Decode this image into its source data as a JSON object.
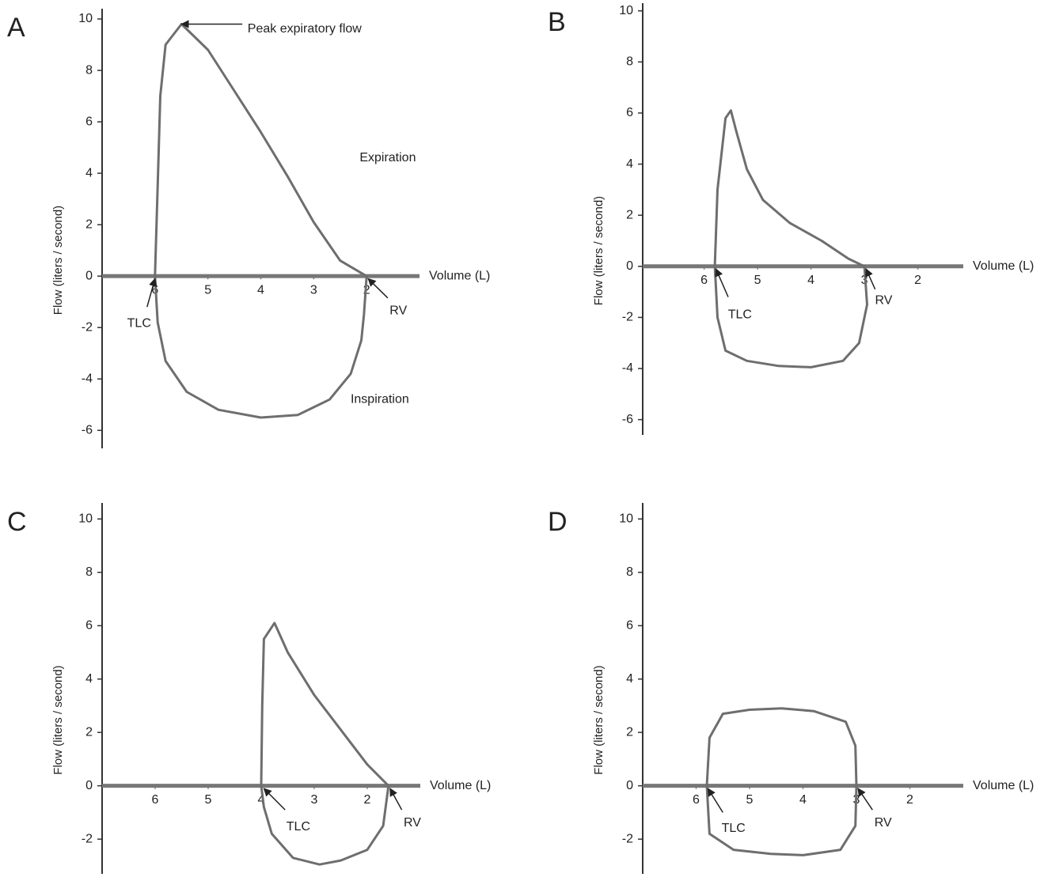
{
  "chart_data": [
    {
      "type": "line",
      "panel": "A",
      "y_label": "Flow (liters / second)",
      "x_label": "Volume (L)",
      "color": "#6e6e6e",
      "xlim": [
        7,
        1
      ],
      "ylim": [
        -6.7,
        10.4
      ],
      "xticks": [
        6,
        5,
        4,
        3,
        2
      ],
      "yticks": [
        10,
        8,
        6,
        4,
        2,
        0,
        -2,
        -4,
        -6
      ],
      "x": [
        6,
        5.95,
        5.9,
        5.8,
        5.5,
        5,
        4.5,
        4,
        3.5,
        3,
        2.5,
        2,
        2.05,
        2.1,
        2.3,
        2.7,
        3.3,
        4,
        4.8,
        5.4,
        5.8,
        5.95,
        6
      ],
      "values": [
        0,
        3.5,
        7,
        9,
        9.8,
        8.8,
        7.2,
        5.6,
        3.9,
        2.1,
        0.6,
        0,
        -1.5,
        -2.5,
        -3.8,
        -4.8,
        -5.4,
        -5.5,
        -5.2,
        -4.5,
        -3.3,
        -1.8,
        0
      ],
      "annotations": [
        "Peak expiratory flow",
        "Expiration",
        "Inspiration",
        "TLC",
        "RV"
      ]
    },
    {
      "type": "line",
      "panel": "B",
      "y_label": "Flow (liters / second)",
      "x_label": "Volume (L)",
      "color": "#6e6e6e",
      "xlim": [
        7.15,
        1.15
      ],
      "ylim": [
        -6.6,
        10.3
      ],
      "xticks": [
        6,
        5,
        4,
        3,
        2
      ],
      "yticks": [
        10,
        8,
        6,
        4,
        2,
        0,
        -2,
        -4,
        -6
      ],
      "x": [
        5.8,
        5.75,
        5.6,
        5.5,
        5.4,
        5.2,
        4.9,
        4.4,
        3.8,
        3.3,
        3,
        2.95,
        3.1,
        3.4,
        4,
        4.6,
        5.2,
        5.6,
        5.75,
        5.8
      ],
      "values": [
        0,
        3,
        5.8,
        6.1,
        5.3,
        3.8,
        2.6,
        1.7,
        1,
        0.3,
        0,
        -1.5,
        -3,
        -3.7,
        -3.95,
        -3.9,
        -3.7,
        -3.3,
        -2,
        0
      ],
      "annotations": [
        "TLC",
        "RV"
      ]
    },
    {
      "type": "line",
      "panel": "C",
      "y_label": "Flow (liters / second)",
      "x_label": "Volume (L)",
      "color": "#6e6e6e",
      "xlim": [
        7,
        1
      ],
      "ylim": [
        -3.3,
        10.6
      ],
      "xticks": [
        6,
        5,
        4,
        3,
        2
      ],
      "yticks": [
        10,
        8,
        6,
        4,
        2,
        0,
        -2
      ],
      "x": [
        4,
        3.98,
        3.95,
        3.75,
        3.5,
        3,
        2.5,
        2,
        1.6,
        1.7,
        2,
        2.5,
        2.9,
        3.4,
        3.8,
        3.95,
        4
      ],
      "values": [
        0,
        3,
        5.5,
        6.1,
        5,
        3.4,
        2.1,
        0.8,
        0,
        -1.5,
        -2.4,
        -2.8,
        -2.95,
        -2.7,
        -1.8,
        -0.8,
        0
      ],
      "annotations": [
        "TLC",
        "RV"
      ]
    },
    {
      "type": "line",
      "panel": "D",
      "y_label": "Flow (liters / second)",
      "x_label": "Volume (L)",
      "color": "#6e6e6e",
      "xlim": [
        7,
        1
      ],
      "ylim": [
        -3.3,
        10.6
      ],
      "xticks": [
        6,
        5,
        4,
        3,
        2
      ],
      "yticks": [
        10,
        8,
        6,
        4,
        2,
        0,
        -2
      ],
      "x": [
        5.8,
        5.75,
        5.5,
        5,
        4.4,
        3.8,
        3.2,
        3.02,
        3,
        3.02,
        3.3,
        4,
        4.6,
        5.3,
        5.75,
        5.8
      ],
      "values": [
        0,
        1.8,
        2.7,
        2.85,
        2.9,
        2.8,
        2.4,
        1.5,
        0,
        -1.5,
        -2.4,
        -2.6,
        -2.55,
        -2.4,
        -1.8,
        0
      ],
      "annotations": [
        "TLC",
        "RV"
      ]
    }
  ]
}
